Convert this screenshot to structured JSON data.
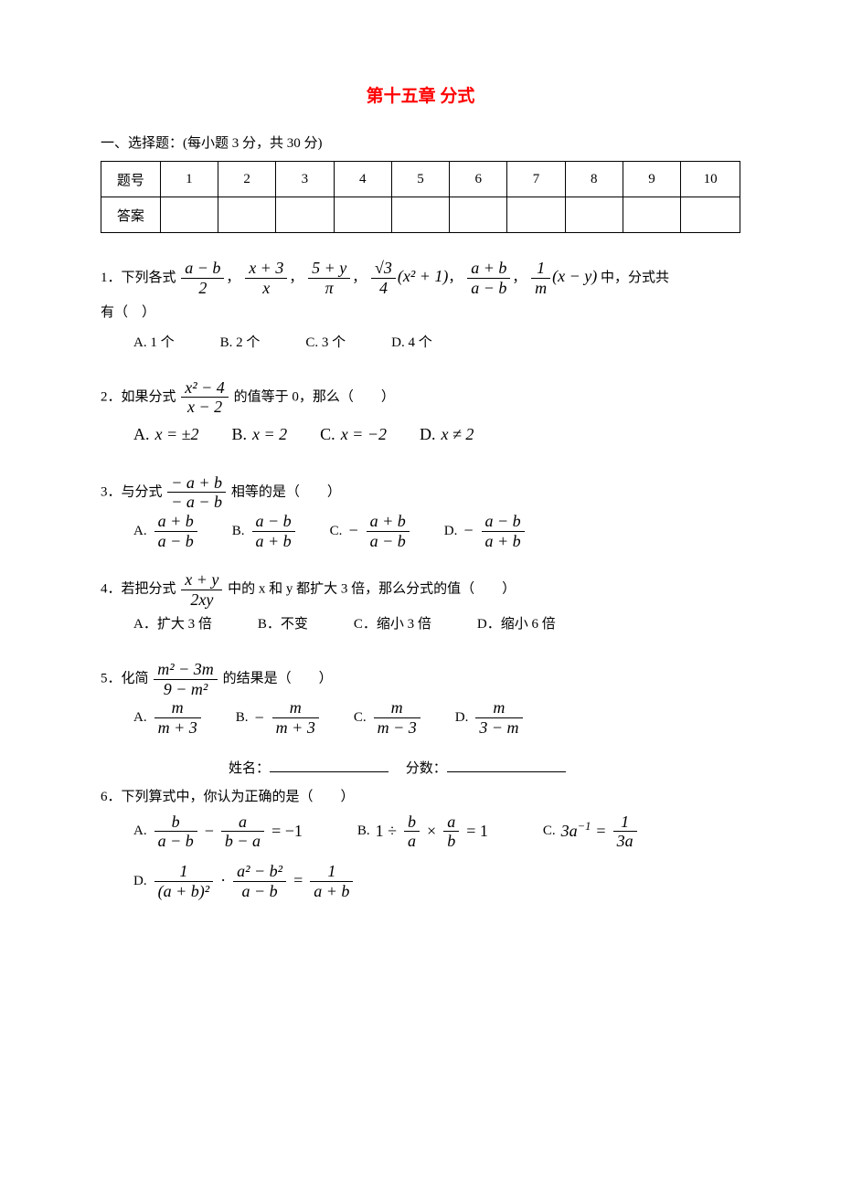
{
  "title": "第十五章 分式",
  "section1": "一、选择题：(每小题 3 分，共 30 分)",
  "grid": {
    "row_label1": "题号",
    "row_label2": "答案",
    "cols": [
      "1",
      "2",
      "3",
      "4",
      "5",
      "6",
      "7",
      "8",
      "9",
      "10"
    ]
  },
  "q1": {
    "stem_a": "1．下列各式",
    "expr1_num": "a − b",
    "expr1_den": "2",
    "expr2_num": "x + 3",
    "expr2_den": "x",
    "expr3_num": "5 + y",
    "expr3_den": "π",
    "expr4_pre_num": "√3",
    "expr4_pre_den": "4",
    "expr4_post": "(x² + 1)",
    "expr5_num": "a + b",
    "expr5_den": "a − b",
    "expr6_num": "1",
    "expr6_den": "m",
    "expr6_post": "(x − y)",
    "stem_b": "中，分式共",
    "stem_c": "有（　）",
    "opts": [
      "A. 1 个",
      "B. 2 个",
      "C. 3 个",
      "D. 4 个"
    ]
  },
  "q2": {
    "stem_a": "2．如果分式",
    "num": "x² − 4",
    "den": "x − 2",
    "stem_b": "的值等于 0，那么（　　）",
    "opts": [
      "A. x = ±2",
      "B. x = 2",
      "C. x = −2",
      "D. x ≠ 2"
    ]
  },
  "q3": {
    "stem_a": "3．与分式",
    "num": "− a + b",
    "den": "− a − b",
    "stem_b": "相等的是（　　）",
    "A_num": "a + b",
    "A_den": "a − b",
    "B_num": "a − b",
    "B_den": "a + b",
    "C_pre": "−",
    "C_num": "a + b",
    "C_den": "a − b",
    "D_pre": "−",
    "D_num": "a − b",
    "D_den": "a + b"
  },
  "q4": {
    "stem_a": "4．若把分式",
    "num": "x + y",
    "den": "2xy",
    "stem_b": "中的 x 和 y 都扩大 3 倍，那么分式的值（　　）",
    "opts": [
      "A．扩大 3 倍",
      "B．不变",
      "C．缩小 3 倍",
      "D．缩小 6 倍"
    ]
  },
  "q5": {
    "stem_a": "5．化简",
    "num": "m² − 3m",
    "den": "9 − m²",
    "stem_b": "的结果是（　　）",
    "A_num": "m",
    "A_den": "m + 3",
    "B_pre": "−",
    "B_num": "m",
    "B_den": "m + 3",
    "C_num": "m",
    "C_den": "m − 3",
    "D_num": "m",
    "D_den": "3 − m"
  },
  "name_label": "姓名：",
  "score_label": "分数：",
  "q6": {
    "stem": "6．下列算式中，你认为正确的是（　　）",
    "A_l_num": "b",
    "A_l_den": "a − b",
    "A_r_num": "a",
    "A_r_den": "b − a",
    "A_eq": " = −1",
    "B_pre": "1 ÷ ",
    "B_l_num": "b",
    "B_l_den": "a",
    "B_mid": " × ",
    "B_r_num": "a",
    "B_r_den": "b",
    "B_eq": " = 1",
    "C_lhs": "3a",
    "C_exp": "−1",
    "C_rhs_num": "1",
    "C_rhs_den": "3a",
    "D_l_num": "1",
    "D_l_den": "(a + b)²",
    "D_mid": " · ",
    "D_m_num": "a² − b²",
    "D_m_den": "a − b",
    "D_eq": " = ",
    "D_r_num": "1",
    "D_r_den": "a + b"
  }
}
